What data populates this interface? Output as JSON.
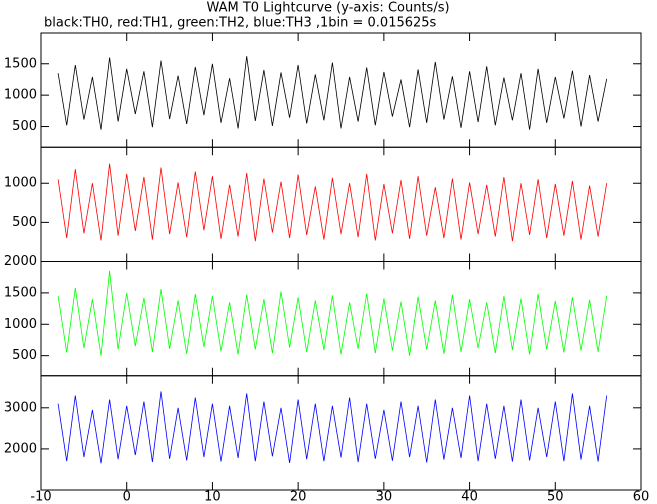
{
  "chart_data": [
    {
      "type": "line",
      "title": "WAM T0 Lightcurve (y-axis: Counts/s)",
      "subtitle": "black:TH0, red:TH1, green:TH2, blue:TH3 ,1bin = 0.015625s",
      "x": [
        -8,
        -7,
        -6,
        -5,
        -4,
        -3,
        -2,
        -1,
        0,
        1,
        2,
        3,
        4,
        5,
        6,
        7,
        8,
        9,
        10,
        11,
        12,
        13,
        14,
        15,
        16,
        17,
        18,
        19,
        20,
        21,
        22,
        23,
        24,
        25,
        26,
        27,
        28,
        29,
        30,
        31,
        32,
        33,
        34,
        35,
        36,
        37,
        38,
        39,
        40,
        41,
        42,
        43,
        44,
        45,
        46,
        47,
        48,
        49,
        50,
        51,
        52,
        53,
        54,
        55,
        56
      ],
      "series": [
        {
          "color": "#000000",
          "values": [
            1350,
            520,
            1480,
            610,
            1290,
            450,
            1600,
            580,
            1420,
            700,
            1380,
            490,
            1550,
            620,
            1310,
            540,
            1450,
            680,
            1500,
            560,
            1270,
            470,
            1620,
            590,
            1400,
            510,
            1360,
            640,
            1480,
            550,
            1330,
            600,
            1520,
            470,
            1290,
            580,
            1440,
            520,
            1370,
            660,
            1250,
            490,
            1410,
            560,
            1530,
            610,
            1300,
            480,
            1380,
            570,
            1460,
            520,
            1280,
            600,
            1350,
            450,
            1420,
            560,
            1290,
            630,
            1390,
            500,
            1320,
            580,
            1260
          ]
        }
      ],
      "ylim": [
        170,
        1990
      ],
      "yticks": [
        500,
        1000,
        1500
      ]
    },
    {
      "type": "line",
      "x": [
        -8,
        -7,
        -6,
        -5,
        -4,
        -3,
        -2,
        -1,
        0,
        1,
        2,
        3,
        4,
        5,
        6,
        7,
        8,
        9,
        10,
        11,
        12,
        13,
        14,
        15,
        16,
        17,
        18,
        19,
        20,
        21,
        22,
        23,
        24,
        25,
        26,
        27,
        28,
        29,
        30,
        31,
        32,
        33,
        34,
        35,
        36,
        37,
        38,
        39,
        40,
        41,
        42,
        43,
        44,
        45,
        46,
        47,
        48,
        49,
        50,
        51,
        52,
        53,
        54,
        55,
        56
      ],
      "series": [
        {
          "color": "#ff0000",
          "values": [
            1050,
            300,
            1180,
            360,
            1000,
            270,
            1250,
            330,
            1120,
            390,
            1080,
            280,
            1200,
            350,
            1010,
            310,
            1150,
            400,
            1090,
            290,
            980,
            320,
            1130,
            260,
            1060,
            370,
            1020,
            300,
            1110,
            340,
            960,
            280,
            1070,
            350,
            1000,
            310,
            1120,
            270,
            990,
            360,
            1040,
            290,
            1090,
            330,
            950,
            300,
            1060,
            280,
            1010,
            350,
            980,
            320,
            1080,
            260,
            1000,
            340,
            1050,
            300,
            990,
            330,
            1030,
            280,
            970,
            320,
            1000
          ]
        }
      ],
      "ylim": [
        0,
        1460
      ],
      "yticks": [
        500,
        1000
      ]
    },
    {
      "type": "line",
      "x": [
        -8,
        -7,
        -6,
        -5,
        -4,
        -3,
        -2,
        -1,
        0,
        1,
        2,
        3,
        4,
        5,
        6,
        7,
        8,
        9,
        10,
        11,
        12,
        13,
        14,
        15,
        16,
        17,
        18,
        19,
        20,
        21,
        22,
        23,
        24,
        25,
        26,
        27,
        28,
        29,
        30,
        31,
        32,
        33,
        34,
        35,
        36,
        37,
        38,
        39,
        40,
        41,
        42,
        43,
        44,
        45,
        46,
        47,
        48,
        49,
        50,
        51,
        52,
        53,
        54,
        55,
        56
      ],
      "series": [
        {
          "color": "#00ff00",
          "values": [
            1450,
            550,
            1580,
            620,
            1400,
            500,
            1850,
            600,
            1500,
            650,
            1420,
            560,
            1560,
            610,
            1380,
            530,
            1480,
            640,
            1450,
            570,
            1350,
            520,
            1470,
            600,
            1400,
            540,
            1520,
            630,
            1430,
            560,
            1380,
            590,
            1460,
            520,
            1350,
            610,
            1490,
            540,
            1410,
            580,
            1360,
            500,
            1440,
            600,
            1380,
            530,
            1470,
            560,
            1400,
            620,
            1350,
            540,
            1450,
            590,
            1410,
            520,
            1480,
            600,
            1370,
            550,
            1430,
            580,
            1390,
            560,
            1450
          ]
        }
      ],
      "ylim": [
        180,
        2000
      ],
      "yticks": [
        500,
        1000,
        1500,
        2000
      ]
    },
    {
      "type": "line",
      "x": [
        -8,
        -7,
        -6,
        -5,
        -4,
        -3,
        -2,
        -1,
        0,
        1,
        2,
        3,
        4,
        5,
        6,
        7,
        8,
        9,
        10,
        11,
        12,
        13,
        14,
        15,
        16,
        17,
        18,
        19,
        20,
        21,
        22,
        23,
        24,
        25,
        26,
        27,
        28,
        29,
        30,
        31,
        32,
        33,
        34,
        35,
        36,
        37,
        38,
        39,
        40,
        41,
        42,
        43,
        44,
        45,
        46,
        47,
        48,
        49,
        50,
        51,
        52,
        53,
        54,
        55,
        56
      ],
      "series": [
        {
          "color": "#0000ff",
          "values": [
            3100,
            1700,
            3300,
            1800,
            2950,
            1650,
            3200,
            1750,
            3050,
            1850,
            3150,
            1680,
            3400,
            1760,
            3000,
            1720,
            3250,
            1800,
            3100,
            1690,
            3050,
            1780,
            3350,
            1700,
            3150,
            1820,
            3000,
            1660,
            3200,
            1750,
            3100,
            1700,
            3050,
            1790,
            3250,
            1680,
            3100,
            1760,
            2950,
            1710,
            3150,
            1800,
            3050,
            1670,
            3200,
            1740,
            3000,
            1780,
            3300,
            1700,
            3100,
            1760,
            3050,
            1690,
            3200,
            1720,
            3000,
            1800,
            3150,
            1700,
            3350,
            1740,
            3050,
            1690,
            3300
          ]
        }
      ],
      "ylim": [
        1000,
        3780
      ],
      "yticks": [
        2000,
        3000
      ],
      "xlim": [
        -10,
        60
      ],
      "xticks": [
        -10,
        0,
        10,
        20,
        30,
        40,
        50,
        60
      ]
    }
  ]
}
